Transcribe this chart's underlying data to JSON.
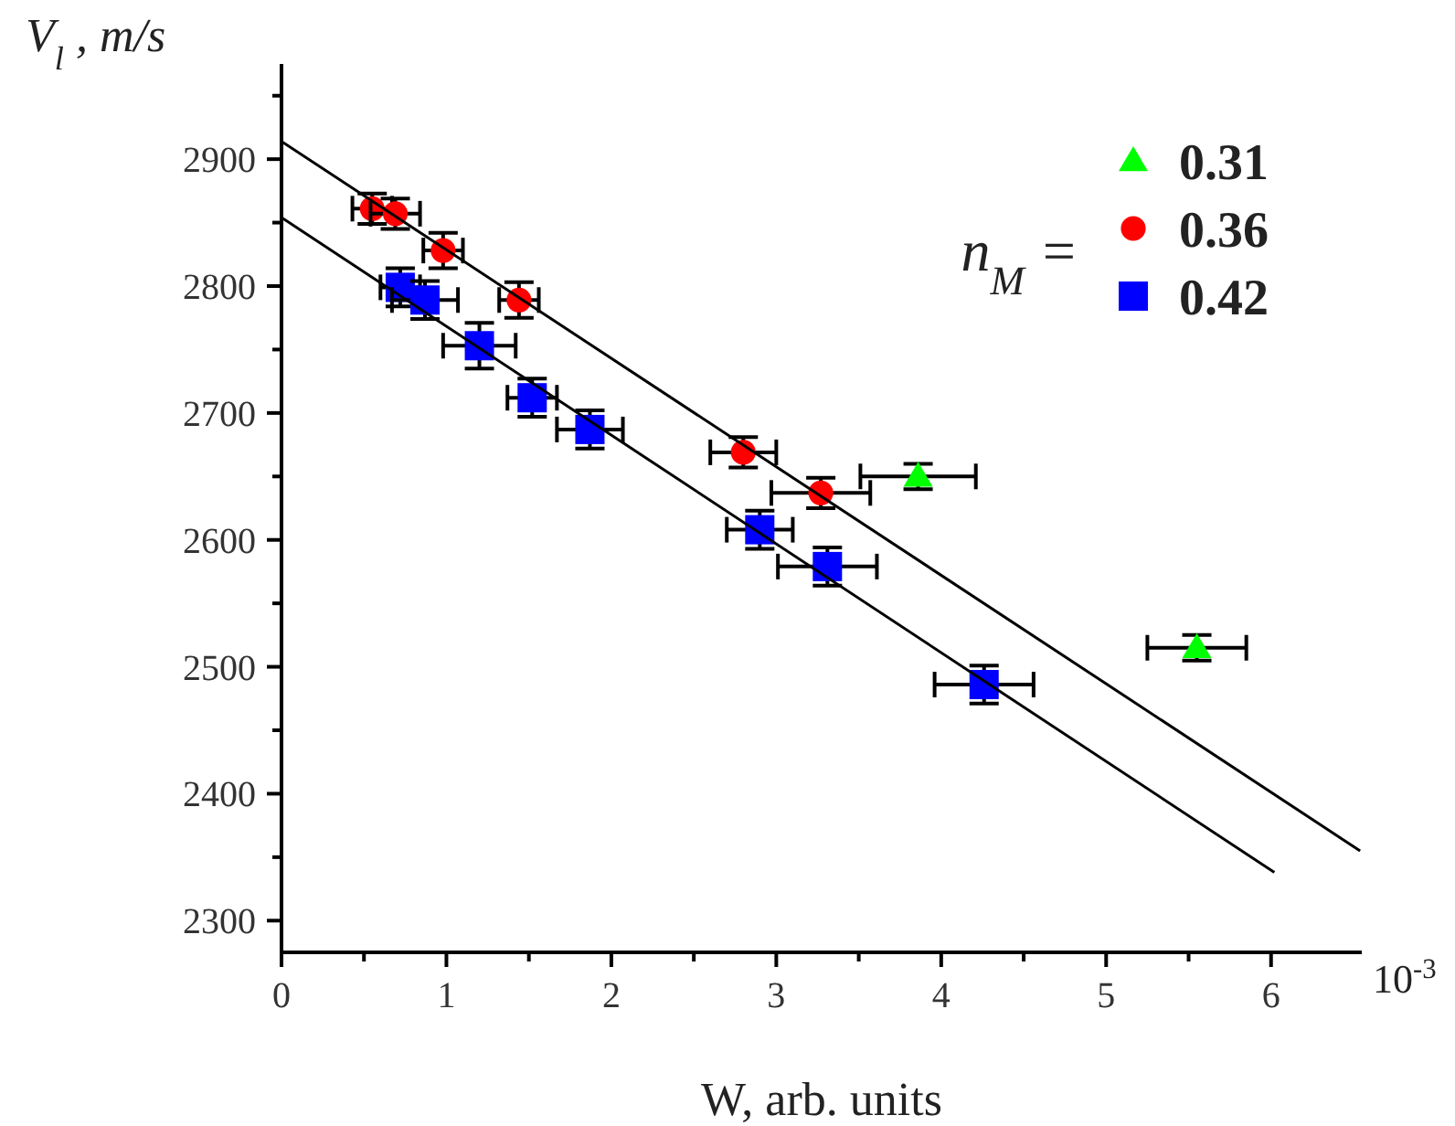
{
  "chart_data": {
    "type": "scatter",
    "xlabel": "W,  arb. units",
    "ylabel": "V$_{l}$ , m/s",
    "legend": "top right",
    "legend_title": "n$_{M}$ =",
    "annotations": [
      "10$^{-3}$"
    ],
    "xlim": [
      0,
      6.55
    ],
    "ylim": [
      2275,
      2975
    ],
    "xticks": [
      0,
      {
        "value": 0.5,
        "label": null
      },
      1,
      {
        "value": 1.5,
        "label": null
      },
      2,
      {
        "value": 2.5,
        "label": null
      },
      3,
      {
        "value": 3.5,
        "label": null
      },
      4,
      {
        "value": 4.5,
        "label": null
      },
      5,
      {
        "value": 5.5,
        "label": null
      },
      6
    ],
    "yticks": [
      2300,
      {
        "value": 2350,
        "label": null
      },
      2400,
      {
        "value": 2450,
        "label": null
      },
      2500,
      {
        "value": 2550,
        "label": null
      },
      2600,
      {
        "value": 2650,
        "label": null
      },
      2700,
      {
        "value": 2750,
        "label": null
      },
      2800,
      {
        "value": 2850,
        "label": null
      },
      2900,
      {
        "value": 2950,
        "label": null
      }
    ],
    "series": [
      {
        "name": "0.31",
        "color": "#00ff00",
        "marker": "triangle",
        "x": [
          3.86,
          5.55
        ],
        "values": [
          2650,
          2515
        ],
        "xerrors": [
          0.35,
          0.3
        ],
        "errors": [
          10,
          10
        ]
      },
      {
        "name": "0.36",
        "color": "#ff0000",
        "marker": "circle",
        "x": [
          0.55,
          0.69,
          0.98,
          1.44,
          2.8,
          3.27
        ],
        "values": [
          2861,
          2857,
          2828,
          2789,
          2669,
          2637
        ],
        "xerrors": [
          0.12,
          0.15,
          0.12,
          0.12,
          0.2,
          0.3
        ],
        "errors": [
          12,
          12,
          14,
          14,
          12,
          12
        ]
      },
      {
        "name": "0.42",
        "color": "#0000ff",
        "marker": "square",
        "x": [
          0.72,
          0.87,
          1.2,
          1.52,
          1.87,
          2.9,
          3.31,
          4.26
        ],
        "values": [
          2799,
          2789,
          2753,
          2712,
          2687,
          2608,
          2579,
          2486
        ],
        "xerrors": [
          0.12,
          0.2,
          0.22,
          0.15,
          0.2,
          0.2,
          0.3,
          0.3
        ],
        "errors": [
          15,
          15,
          18,
          15,
          15,
          15,
          15,
          15
        ]
      },
      {
        "type": "line",
        "color": "#000000",
        "x": [
          0,
          6.54
        ],
        "values": [
          2914,
          2355
        ]
      },
      {
        "type": "line",
        "color": "#000000",
        "x": [
          0,
          6.02
        ],
        "values": [
          2854,
          2338
        ]
      }
    ]
  }
}
